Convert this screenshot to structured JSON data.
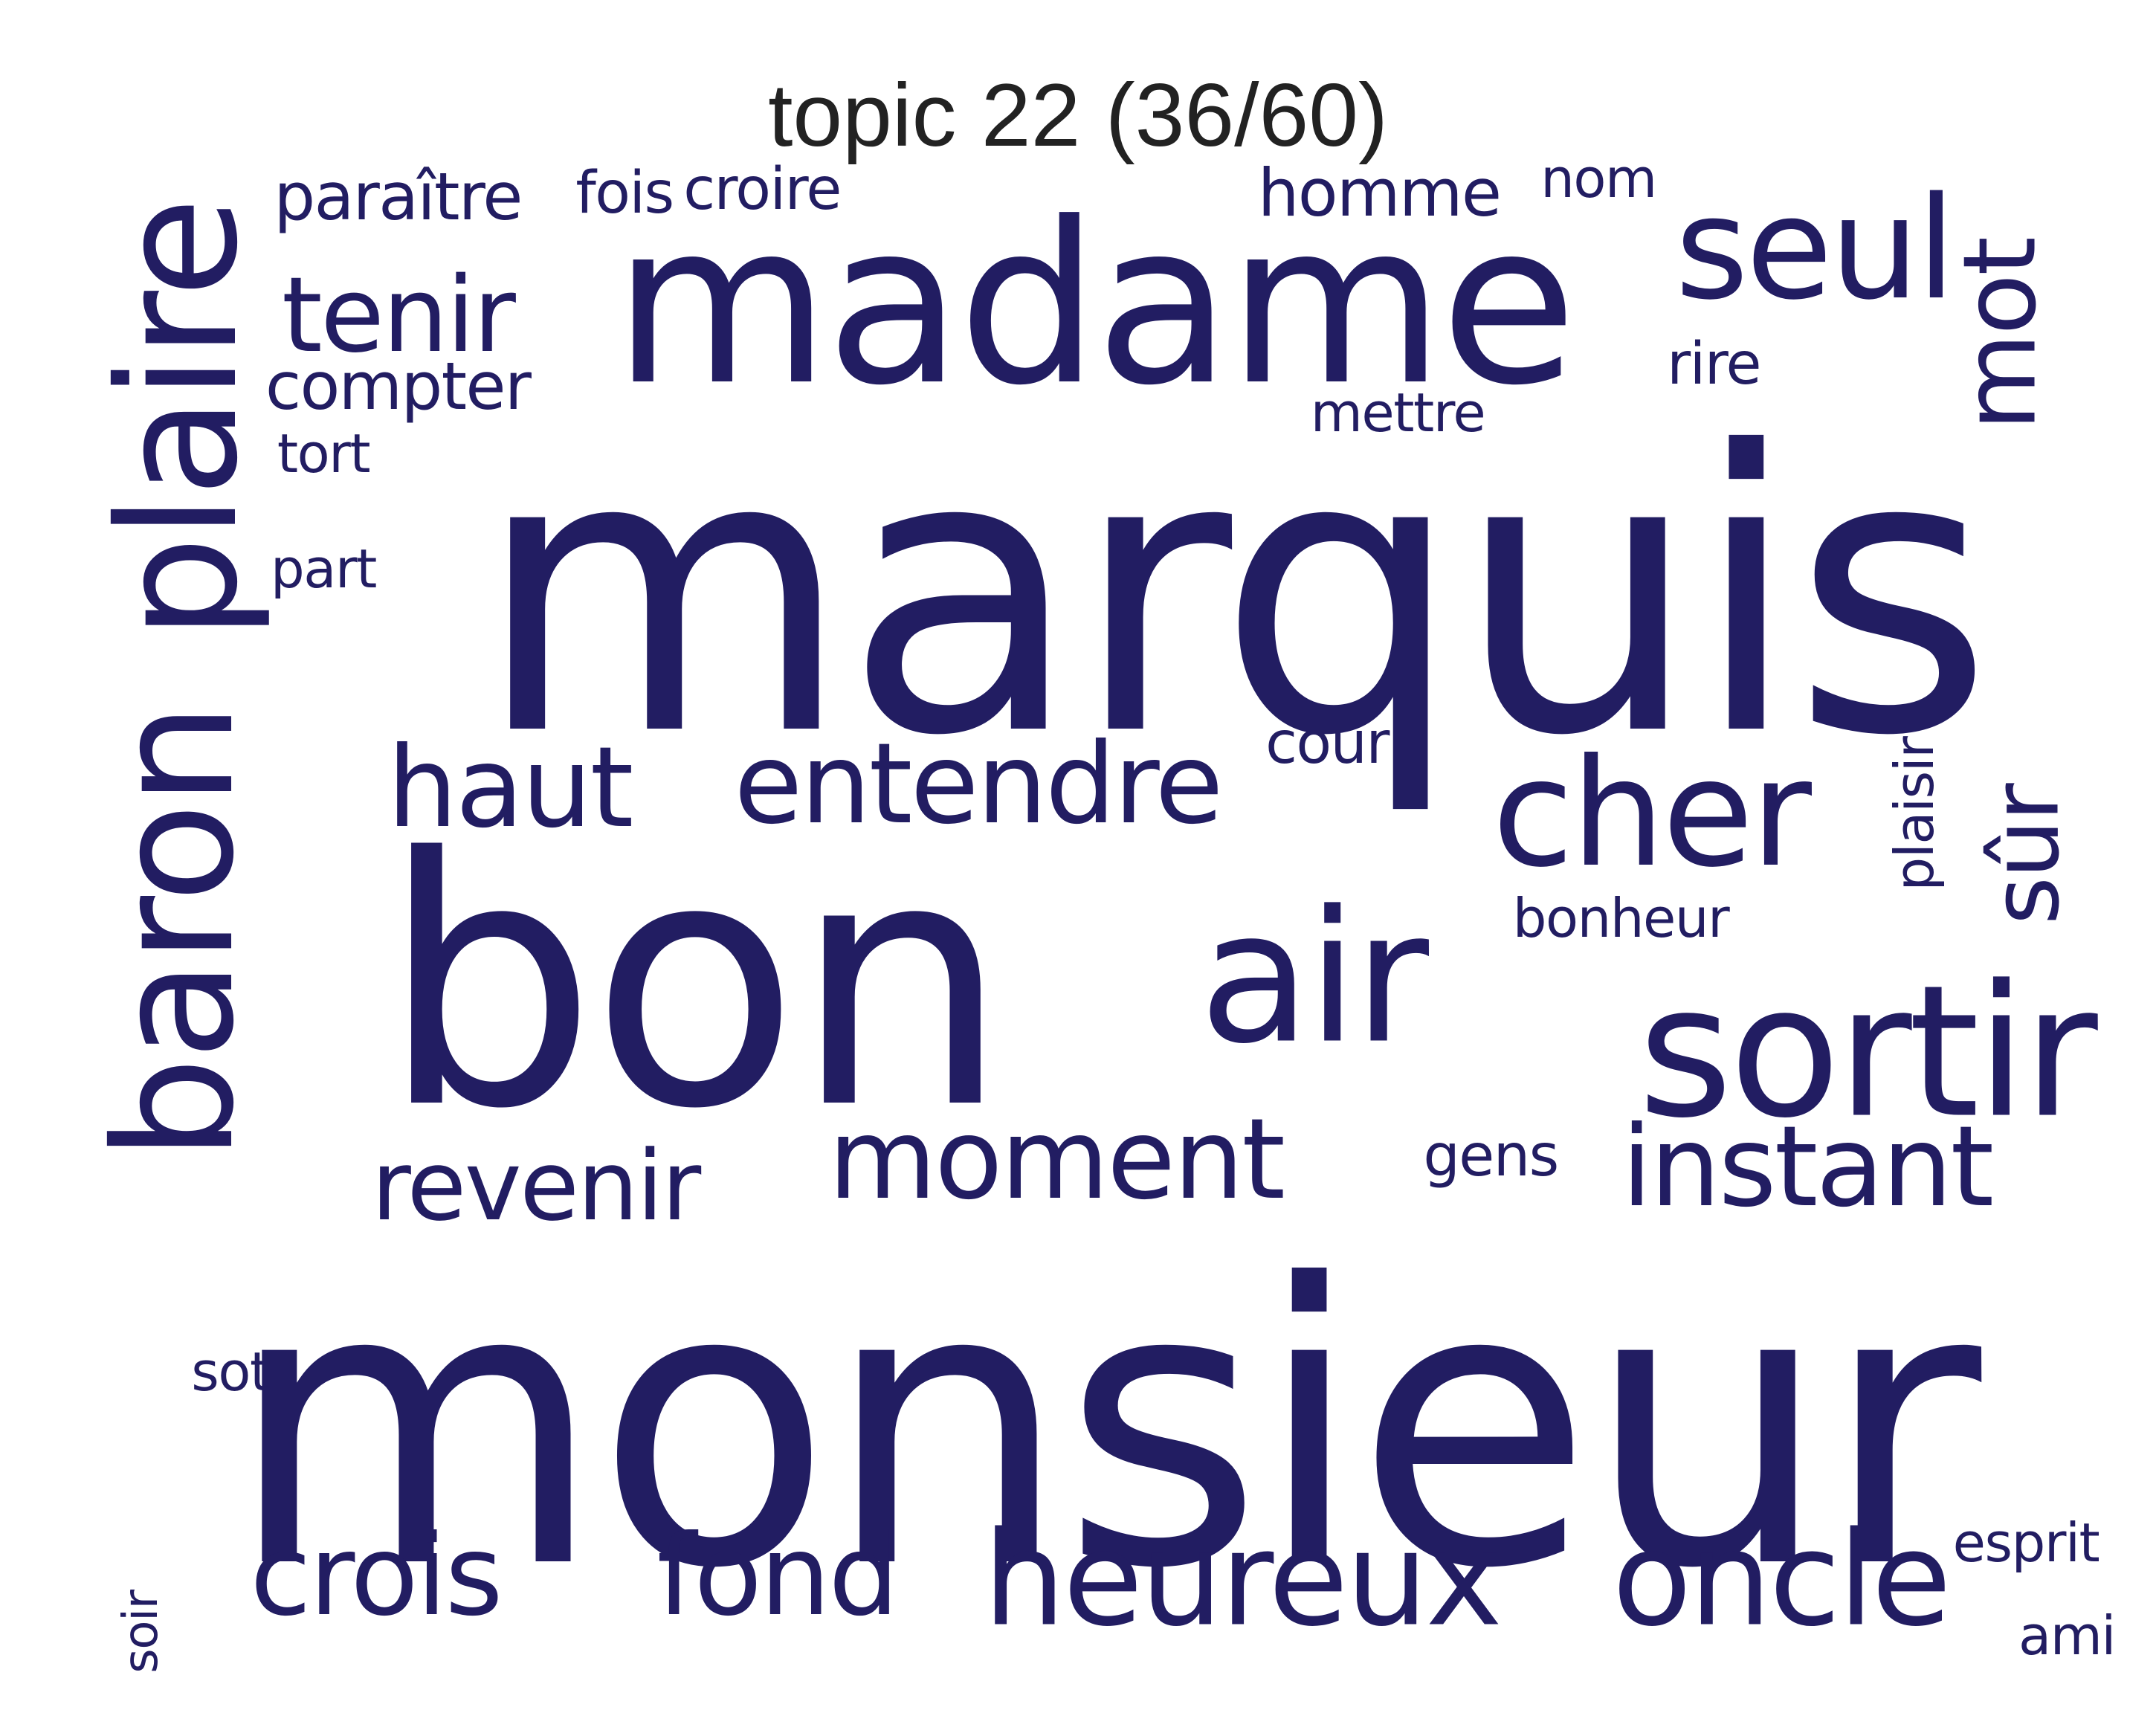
{
  "title": "topic 22 (36/60)",
  "colors": {
    "word": "#221d62",
    "title": "#222222",
    "background": "#ffffff"
  },
  "words": [
    {
      "text": "marquis"
    },
    {
      "text": "monsieur"
    },
    {
      "text": "bon"
    },
    {
      "text": "madame"
    },
    {
      "text": "baron"
    },
    {
      "text": "plaire"
    },
    {
      "text": "sortir"
    },
    {
      "text": "air"
    },
    {
      "text": "cher"
    },
    {
      "text": "seul"
    },
    {
      "text": "heureux"
    },
    {
      "text": "oncle"
    },
    {
      "text": "entendre"
    },
    {
      "text": "haut"
    },
    {
      "text": "moment"
    },
    {
      "text": "instant"
    },
    {
      "text": "fond"
    },
    {
      "text": "crois"
    },
    {
      "text": "revenir"
    },
    {
      "text": "tenir"
    },
    {
      "text": "mot"
    },
    {
      "text": "sûr"
    },
    {
      "text": "homme"
    },
    {
      "text": "paraître"
    },
    {
      "text": "compter"
    },
    {
      "text": "croire"
    },
    {
      "text": "fois"
    },
    {
      "text": "nom"
    },
    {
      "text": "rire"
    },
    {
      "text": "mettre"
    },
    {
      "text": "tort"
    },
    {
      "text": "part"
    },
    {
      "text": "cour"
    },
    {
      "text": "bonheur"
    },
    {
      "text": "plaisir"
    },
    {
      "text": "gens"
    },
    {
      "text": "sot"
    },
    {
      "text": "esprit"
    },
    {
      "text": "ami"
    },
    {
      "text": "soir"
    }
  ]
}
